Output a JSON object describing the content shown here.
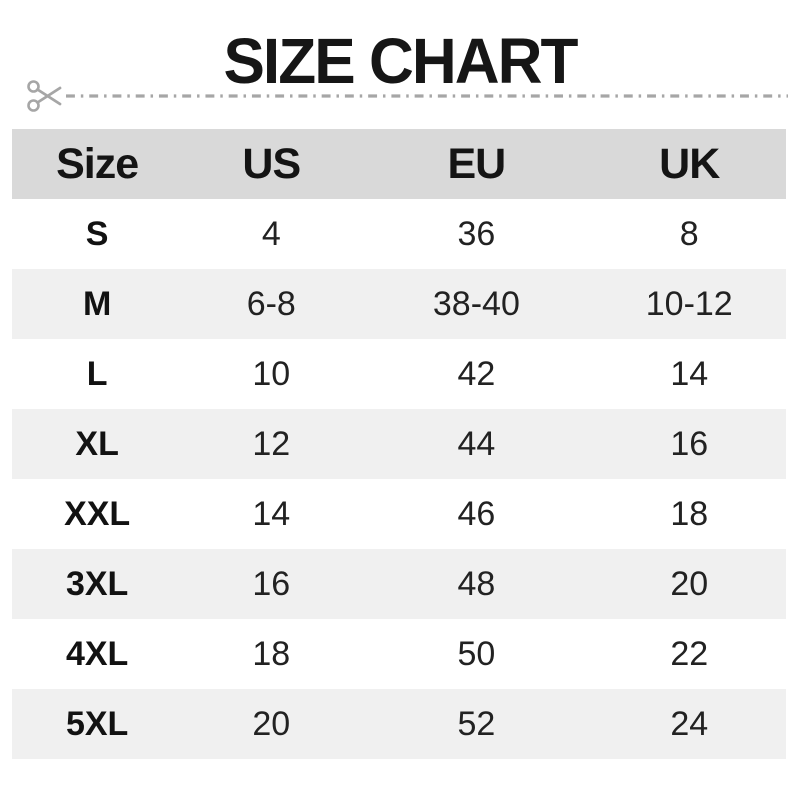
{
  "title": "SIZE CHART",
  "cut_line": {
    "icon": "scissors-icon"
  },
  "table": {
    "headers": [
      "Size",
      "US",
      "EU",
      "UK"
    ],
    "rows": [
      {
        "size": "S",
        "us": "4",
        "eu": "36",
        "uk": "8"
      },
      {
        "size": "M",
        "us": "6-8",
        "eu": "38-40",
        "uk": "10-12"
      },
      {
        "size": "L",
        "us": "10",
        "eu": "42",
        "uk": "14"
      },
      {
        "size": "XL",
        "us": "12",
        "eu": "44",
        "uk": "16"
      },
      {
        "size": "XXL",
        "us": "14",
        "eu": "46",
        "uk": "18"
      },
      {
        "size": "3XL",
        "us": "16",
        "eu": "48",
        "uk": "20"
      },
      {
        "size": "4XL",
        "us": "18",
        "eu": "50",
        "uk": "22"
      },
      {
        "size": "5XL",
        "us": "20",
        "eu": "52",
        "uk": "24"
      }
    ]
  },
  "colors": {
    "header_bg": "#d9d9d9",
    "stripe_bg": "#f0f0f0",
    "text": "#111111",
    "cutline": "#a6a6a6"
  }
}
